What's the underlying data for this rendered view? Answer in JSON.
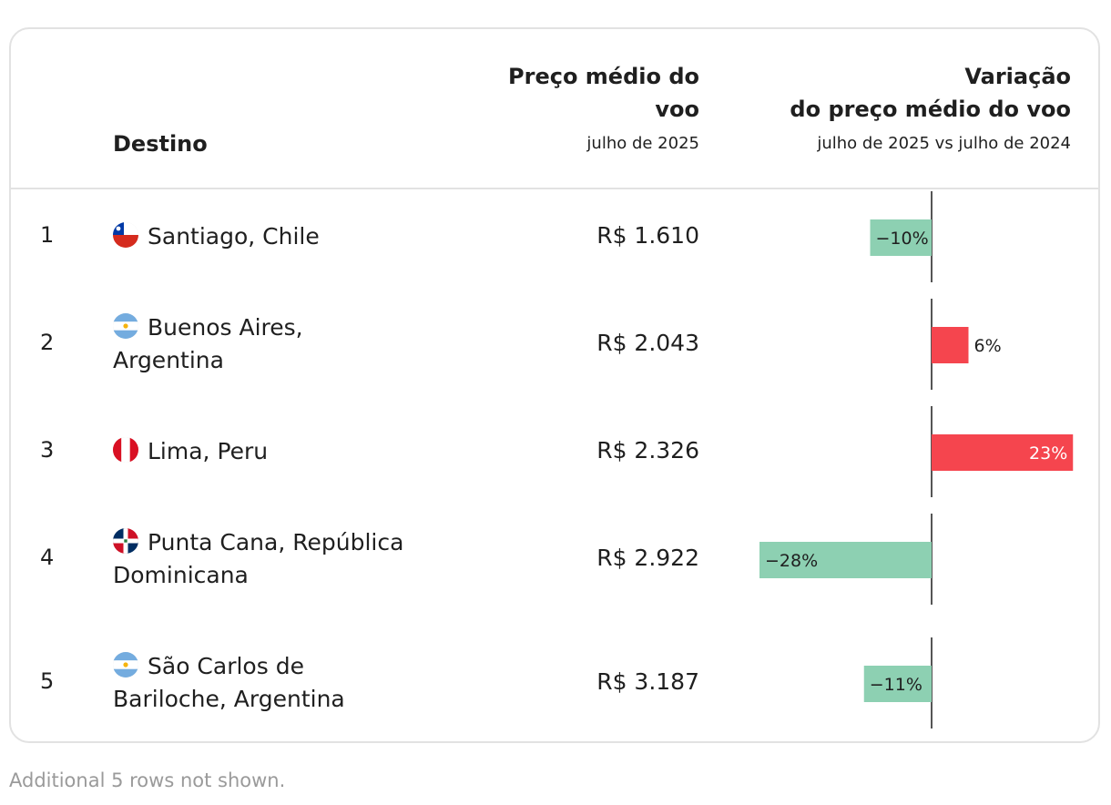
{
  "header": {
    "destino": "Destino",
    "preco_line1": "Preço médio do",
    "preco_line2": "voo",
    "preco_sub": "julho de 2025",
    "variacao_line1": "Variação",
    "variacao_line2": "do preço médio do voo",
    "variacao_sub": "julho de 2025 vs julho de 2024"
  },
  "rows": [
    {
      "rank": "1",
      "line1": "Santiago, Chile",
      "line2": "",
      "flag": "chile-flag-icon",
      "price": "R$ 1.610"
    },
    {
      "rank": "2",
      "line1": "Buenos Aires,",
      "line2": "Argentina",
      "flag": "argentina-flag-icon",
      "price": "R$ 2.043"
    },
    {
      "rank": "3",
      "line1": "Lima, Peru",
      "line2": "",
      "flag": "peru-flag-icon",
      "price": "R$ 2.326"
    },
    {
      "rank": "4",
      "line1": "Punta Cana, República",
      "line2": "Dominicana",
      "flag": "dominican-republic-flag-icon",
      "price": "R$ 2.922"
    },
    {
      "rank": "5",
      "line1": "São Carlos de",
      "line2": "Bariloche, Argentina",
      "flag": "argentina-flag-icon",
      "price": "R$ 3.187"
    }
  ],
  "chart_data": {
    "type": "bar",
    "orientation": "horizontal",
    "title": "Variação do preço médio do voo",
    "subtitle": "julho de 2025 vs julho de 2024",
    "categories": [
      "Santiago, Chile",
      "Buenos Aires, Argentina",
      "Lima, Peru",
      "Punta Cana, República Dominicana",
      "São Carlos de Bariloche, Argentina"
    ],
    "values": [
      -10,
      6,
      23,
      -28,
      -11
    ],
    "labels": [
      "−10%",
      "6%",
      "23%",
      "−28%",
      "−11%"
    ],
    "unit": "%",
    "xlim": [
      -28,
      23
    ],
    "colors": {
      "negative": "#8dd0b2",
      "positive": "#f5454e",
      "axis": "#555555"
    }
  },
  "footer": {
    "note": "Additional 5 rows not shown."
  }
}
